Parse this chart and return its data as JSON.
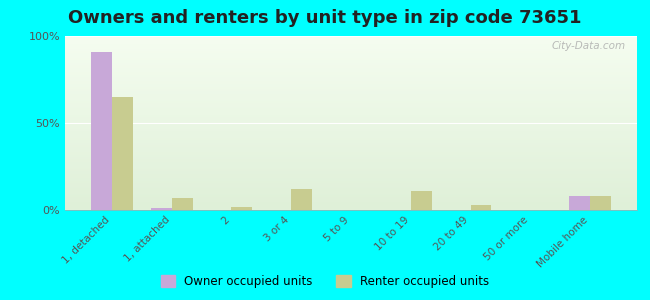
{
  "title": "Owners and renters by unit type in zip code 73651",
  "categories": [
    "1, detached",
    "1, attached",
    "2",
    "3 or 4",
    "5 to 9",
    "10 to 19",
    "20 to 49",
    "50 or more",
    "Mobile home"
  ],
  "owner_values": [
    91,
    1,
    0,
    0,
    0,
    0,
    0,
    0,
    8
  ],
  "renter_values": [
    65,
    7,
    2,
    12,
    0,
    11,
    3,
    0,
    8
  ],
  "owner_color": "#c8a8d8",
  "renter_color": "#c8cc90",
  "bg_gradient_top": "#f5fdf0",
  "bg_gradient_bottom": "#dff0d8",
  "outer_bg_color": "#00ffff",
  "ylim": [
    0,
    100
  ],
  "yticks": [
    0,
    50,
    100
  ],
  "ytick_labels": [
    "0%",
    "50%",
    "100%"
  ],
  "bar_width": 0.35,
  "title_fontsize": 13,
  "legend_owner": "Owner occupied units",
  "legend_renter": "Renter occupied units",
  "watermark": "City-Data.com"
}
